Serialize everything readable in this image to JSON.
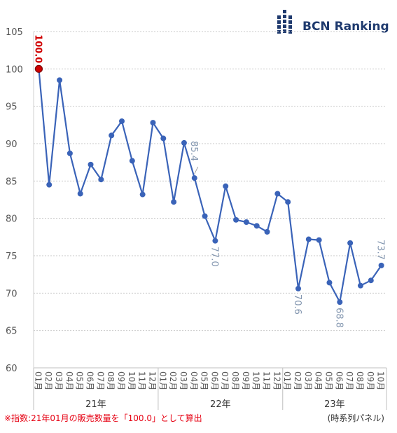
{
  "brand": {
    "name": "BCN Ranking",
    "color": "#1f3a6e"
  },
  "chart_data": {
    "type": "line",
    "title": "",
    "xlabel": "",
    "ylabel": "",
    "ylim": [
      60,
      105
    ],
    "yticks": [
      60,
      65,
      70,
      75,
      80,
      85,
      90,
      95,
      100,
      105
    ],
    "grid": "horizontal dotted",
    "categories": [
      "01月",
      "02月",
      "03月",
      "04月",
      "05月",
      "06月",
      "07月",
      "08月",
      "09月",
      "10月",
      "11月",
      "12月",
      "01月",
      "02月",
      "03月",
      "04月",
      "05月",
      "06月",
      "07月",
      "08月",
      "09月",
      "10月",
      "11月",
      "12月",
      "01月",
      "02月",
      "03月",
      "04月",
      "05月",
      "06月",
      "07月",
      "08月",
      "09月",
      "10月"
    ],
    "year_groups": [
      {
        "label": "21年",
        "start": 0,
        "end": 11
      },
      {
        "label": "22年",
        "start": 12,
        "end": 23
      },
      {
        "label": "23年",
        "start": 24,
        "end": 33
      }
    ],
    "series": [
      {
        "values": [
          100.0,
          84.5,
          98.5,
          88.7,
          83.3,
          87.2,
          85.2,
          91.1,
          93.0,
          87.7,
          83.2,
          92.8,
          90.7,
          82.2,
          90.1,
          85.4,
          80.3,
          77.0,
          84.3,
          79.8,
          79.5,
          79.0,
          78.2,
          83.3,
          82.2,
          70.6,
          77.2,
          77.1,
          71.4,
          68.8,
          76.7,
          71.0,
          71.7,
          73.7
        ],
        "color": "#3a63b8"
      }
    ],
    "labeled_points": [
      {
        "index": 0,
        "text": "100.0",
        "color": "#d00000",
        "highlight": true
      },
      {
        "index": 15,
        "text": "85.4",
        "color": "#8497b0",
        "highlight": false
      },
      {
        "index": 17,
        "text": "77.0",
        "color": "#8497b0",
        "highlight": false
      },
      {
        "index": 25,
        "text": "70.6",
        "color": "#8497b0",
        "highlight": false
      },
      {
        "index": 29,
        "text": "68.8",
        "color": "#8497b0",
        "highlight": false
      },
      {
        "index": 33,
        "text": "73.7",
        "color": "#8497b0",
        "highlight": false
      }
    ]
  },
  "footnote": "※指数:21年01月の販売数量を「100.0」として算出",
  "source_label": "(時系列パネル)"
}
